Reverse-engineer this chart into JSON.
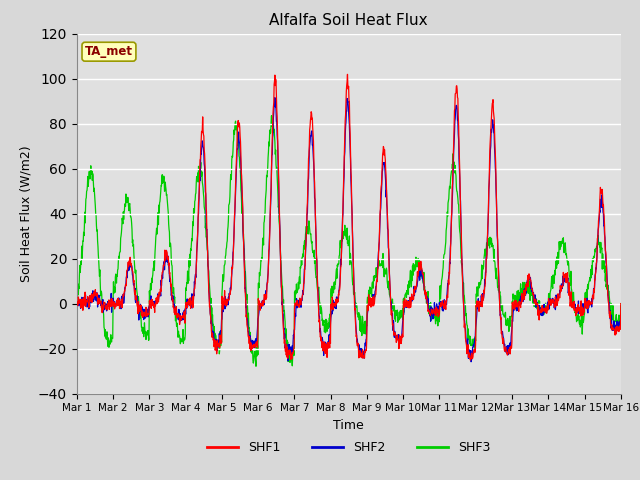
{
  "title": "Alfalfa Soil Heat Flux",
  "xlabel": "Time",
  "ylabel": "Soil Heat Flux (W/m2)",
  "ylim": [
    -40,
    120
  ],
  "yticks": [
    -40,
    -20,
    0,
    20,
    40,
    60,
    80,
    100,
    120
  ],
  "x_tick_labels": [
    "Mar 1",
    "Mar 2",
    "Mar 3",
    "Mar 4",
    "Mar 5",
    "Mar 6",
    "Mar 7",
    "Mar 8",
    "Mar 9",
    "Mar 10",
    "Mar 11",
    "Mar 12",
    "Mar 13",
    "Mar 14",
    "Mar 15",
    "Mar 16"
  ],
  "colors": {
    "SHF1": "#ff0000",
    "SHF2": "#0000cc",
    "SHF3": "#00cc00"
  },
  "legend_label": "TA_met",
  "fig_bg": "#d8d8d8",
  "plot_bg": "#e0e0e0",
  "n_days": 15,
  "pts_per_day": 96,
  "shf1_peaks": [
    5,
    20,
    25,
    85,
    87,
    107,
    91,
    107,
    74,
    18,
    104,
    96,
    12,
    12,
    55
  ],
  "shf3_peaks": [
    64,
    50,
    60,
    65,
    84,
    87,
    36,
    35,
    20,
    20,
    67,
    30,
    7,
    30,
    30
  ]
}
